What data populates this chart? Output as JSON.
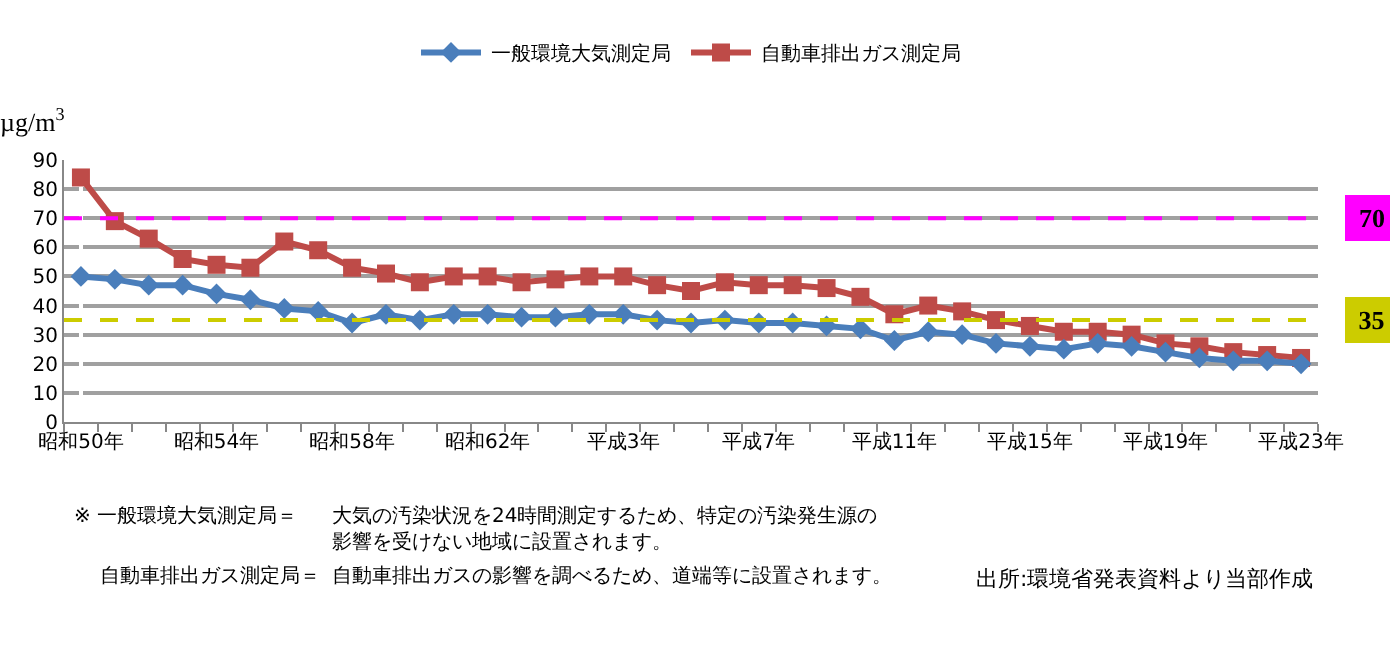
{
  "chart_data": {
    "type": "line",
    "ylabel": "µg/m$^{3}$",
    "categories": [
      "昭和50年",
      null,
      null,
      null,
      "昭和54年",
      null,
      null,
      null,
      "昭和58年",
      null,
      null,
      null,
      "昭和62年",
      null,
      null,
      null,
      "平成3年",
      null,
      null,
      null,
      "平成7年",
      null,
      null,
      null,
      "平成11年",
      null,
      null,
      null,
      "平成15年",
      null,
      null,
      null,
      "平成19年",
      null,
      null,
      null,
      "平成23年"
    ],
    "series": [
      {
        "name": "一般環境大気測定局",
        "color": "#4a7ebb",
        "marker": "diamond",
        "values": [
          50,
          49,
          47,
          47,
          44,
          42,
          39,
          38,
          34,
          37,
          35,
          37,
          37,
          36,
          36,
          37,
          37,
          35,
          34,
          35,
          34,
          34,
          33,
          32,
          28,
          31,
          30,
          27,
          26,
          25,
          27,
          26,
          24,
          22,
          21,
          21,
          20
        ]
      },
      {
        "name": "自動車排出ガス測定局",
        "color": "#be4b48",
        "marker": "square",
        "values": [
          84,
          69,
          63,
          56,
          54,
          53,
          62,
          59,
          53,
          51,
          48,
          50,
          50,
          48,
          49,
          50,
          50,
          47,
          45,
          48,
          47,
          47,
          46,
          43,
          37,
          40,
          38,
          35,
          33,
          31,
          31,
          30,
          27,
          26,
          24,
          23,
          22
        ]
      }
    ],
    "ylim": [
      0,
      90
    ],
    "yticks": [
      0,
      10,
      20,
      30,
      40,
      50,
      60,
      70,
      80,
      90
    ],
    "grid": "y",
    "legend": "top",
    "line_style": "solid",
    "ref_lines": [
      {
        "axis": "y",
        "value": 70,
        "label": "70",
        "color": "#ff00ff",
        "line_style": "dashed"
      },
      {
        "axis": "y",
        "value": 35,
        "label": "35",
        "color": "#cccc00",
        "line_style": "dashed"
      }
    ],
    "annotations": [
      "※ 一般環境大気測定局＝",
      "大気の汚染状況を24時間測定するため、特定の汚染発生源の影響を受けない地域に設置されます。",
      "自動車排出ガス測定局＝",
      "自動車排出ガスの影響を調べるため、道端等に設置されます。",
      "出所:環境省発表資料より当部作成"
    ]
  }
}
